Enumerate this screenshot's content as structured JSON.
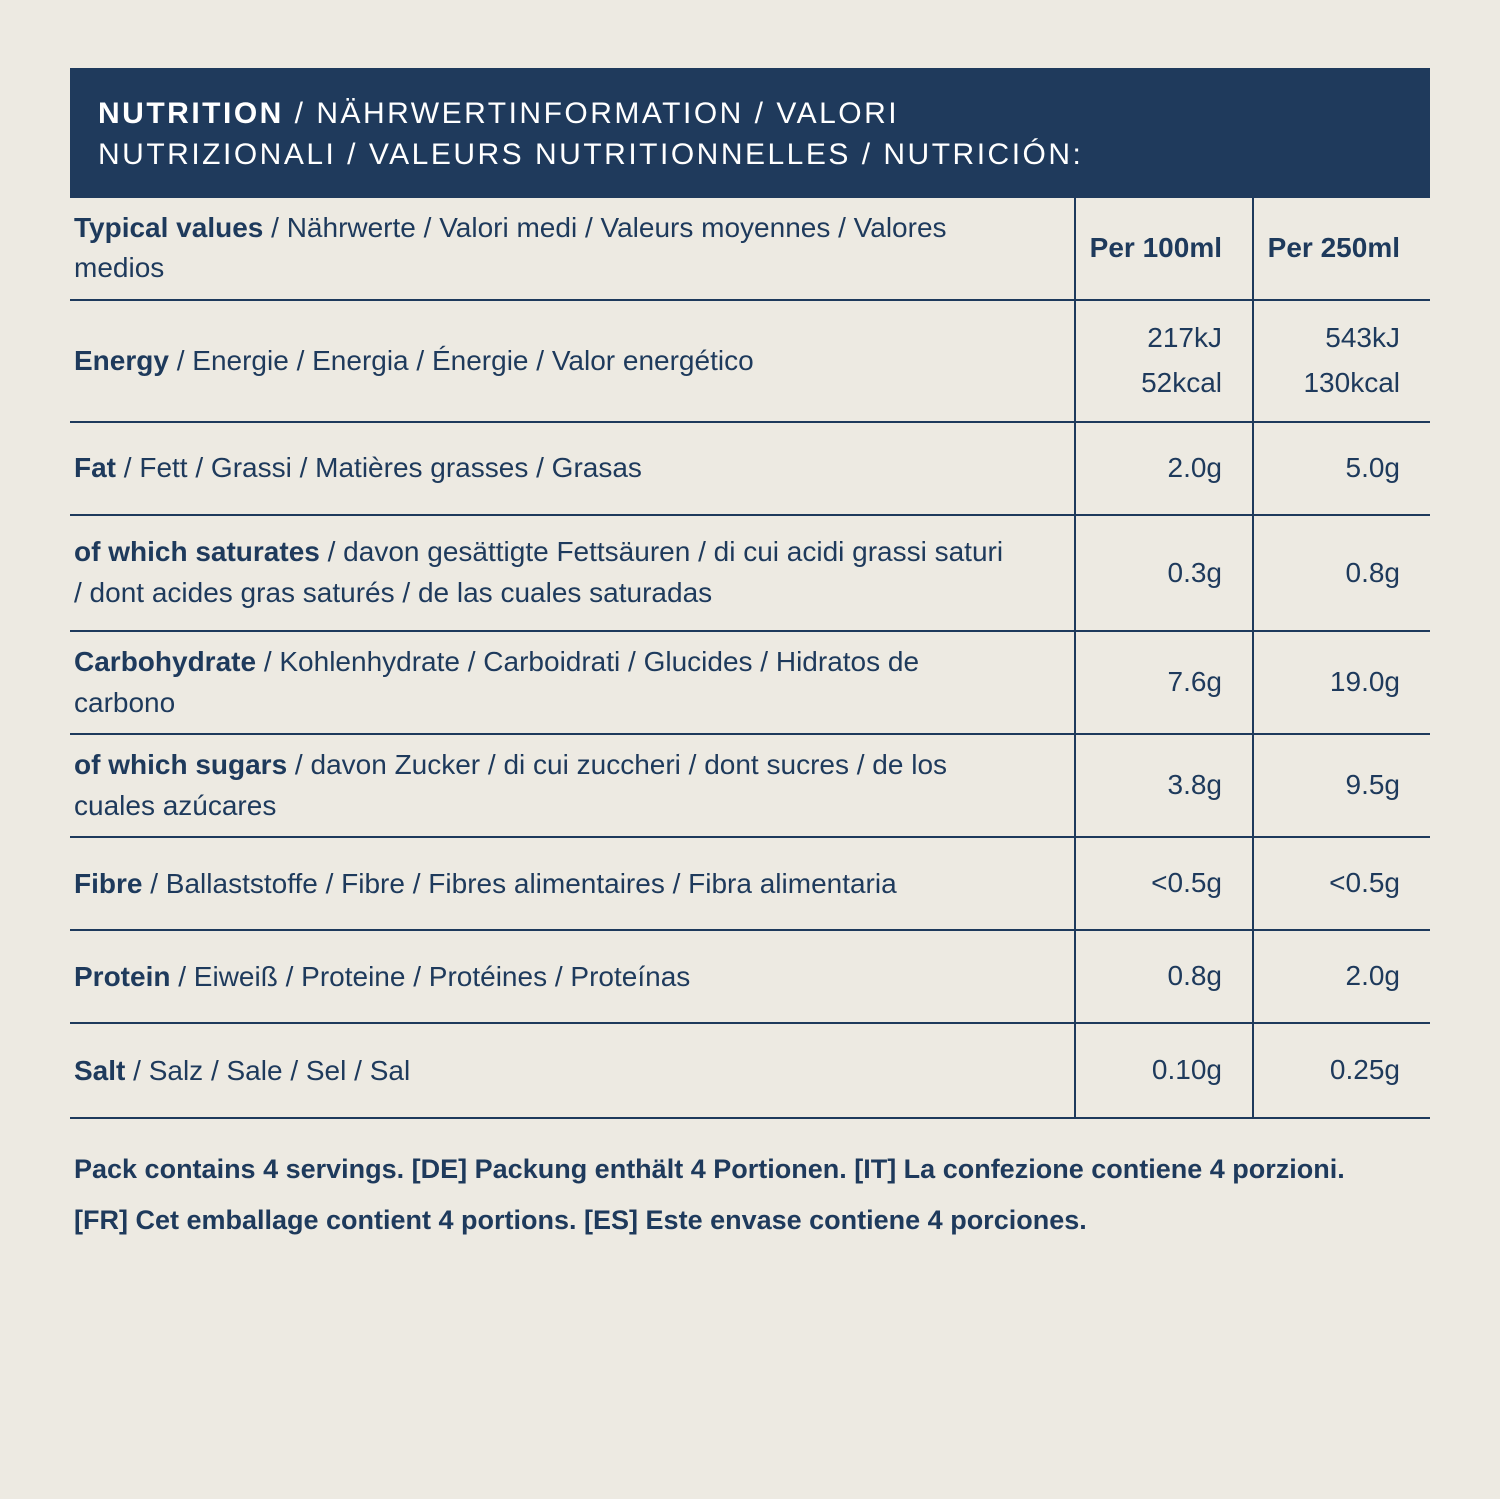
{
  "colors": {
    "background": "#edeae2",
    "ink": "#1e3a5c",
    "header_bar": "#1f3a5c",
    "header_text": "#ffffff"
  },
  "header": {
    "title_bold": "NUTRITION",
    "title_rest": " / NÄHRWERTINFORMATION / VALORI NUTRIZIONALI / VALEURS NUTRITIONNELLES / NUTRICIÓN:"
  },
  "table": {
    "header": {
      "label_bold": "Typical values",
      "label_rest": " / Nährwerte / Valori medi / Valeurs moyennes / Valores medios",
      "col1": "Per 100ml",
      "col2": "Per 250ml"
    },
    "rows": [
      {
        "label_bold": "Energy",
        "label_rest": " / Energie / Energia / Énergie / Valor energético",
        "per100": "217kJ\n52kcal",
        "per250": "543kJ\n130kcal"
      },
      {
        "label_bold": "Fat",
        "label_rest": " / Fett / Grassi / Matières grasses / Grasas",
        "per100": "2.0g",
        "per250": "5.0g"
      },
      {
        "label_bold": "of which saturates",
        "label_rest": " / davon gesättigte Fettsäuren / di cui acidi grassi saturi / dont acides gras saturés / de las cuales saturadas",
        "per100": "0.3g",
        "per250": "0.8g"
      },
      {
        "label_bold": "Carbohydrate",
        "label_rest": " / Kohlenhydrate / Carboidrati / Glucides / Hidratos de carbono",
        "per100": "7.6g",
        "per250": "19.0g"
      },
      {
        "label_bold": "of which sugars",
        "label_rest": " / davon Zucker / di cui zuccheri / dont sucres / de los cuales azúcares",
        "per100": "3.8g",
        "per250": "9.5g"
      },
      {
        "label_bold": "Fibre",
        "label_rest": " / Ballaststoffe / Fibre / Fibres alimentaires / Fibra alimentaria",
        "per100": "<0.5g",
        "per250": "<0.5g"
      },
      {
        "label_bold": "Protein",
        "label_rest": " / Eiweiß / Proteine / Protéines / Proteínas",
        "per100": "0.8g",
        "per250": "2.0g"
      },
      {
        "label_bold": "Salt",
        "label_rest": " / Salz / Sale / Sel / Sal",
        "per100": "0.10g",
        "per250": "0.25g"
      }
    ]
  },
  "notes": {
    "line1": "Pack contains 4 servings. [DE] Packung enthält 4 Portionen. [IT] La confezione contiene 4 porzioni.",
    "line2": "[FR] Cet emballage contient 4 portions. [ES] Este envase contiene 4 porciones."
  }
}
